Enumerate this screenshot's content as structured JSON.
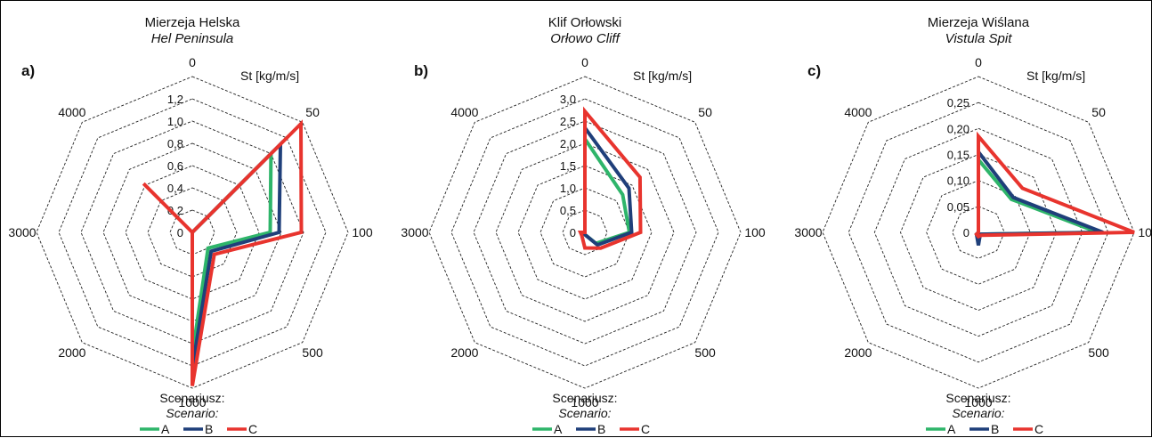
{
  "chart_data": [
    {
      "type": "radar",
      "panel": "a)",
      "title": "Mierzeja Helska",
      "subtitle": "Hel Peninsula",
      "unit": "St [kg/m/s]",
      "categories": [
        "0",
        "50",
        "100",
        "500",
        "1000",
        "2000",
        "3000",
        "4000"
      ],
      "ticks": [
        "0",
        "0,2",
        "0,4",
        "0,6",
        "0,8",
        "1,0",
        "1,2"
      ],
      "rmax": 1.4,
      "series": [
        {
          "name": "A",
          "color": "#2eb56a",
          "values": [
            0.0,
            1.0,
            0.7,
            0.2,
            1.1,
            0.0,
            0.0,
            0.0
          ]
        },
        {
          "name": "B",
          "color": "#1f3f7a",
          "values": [
            0.0,
            1.12,
            0.78,
            0.24,
            1.22,
            0.0,
            0.0,
            0.0
          ]
        },
        {
          "name": "C",
          "color": "#e8342e",
          "values": [
            0.0,
            1.38,
            0.98,
            0.28,
            1.38,
            0.0,
            0.0,
            0.62
          ]
        }
      ],
      "legend": {
        "title": "Scenariusz:",
        "subtitle": "Scenario:"
      }
    },
    {
      "type": "radar",
      "panel": "b)",
      "title": "Klif Orłowski",
      "subtitle": "Orłowo Cliff",
      "unit": "St [kg/m/s]",
      "categories": [
        "0",
        "50",
        "100",
        "500",
        "1000",
        "2000",
        "3000",
        "4000"
      ],
      "ticks": [
        "0",
        "0,5",
        "1,0",
        "1,5",
        "2,0",
        "2,5",
        "3,0"
      ],
      "rmax": 3.5,
      "series": [
        {
          "name": "A",
          "color": "#2eb56a",
          "values": [
            2.1,
            1.2,
            1.0,
            0.35,
            0.05,
            0.0,
            0.0,
            0.0
          ]
        },
        {
          "name": "B",
          "color": "#1f3f7a",
          "values": [
            2.35,
            1.4,
            1.05,
            0.4,
            0.05,
            0.0,
            0.0,
            0.0
          ]
        },
        {
          "name": "C",
          "color": "#e8342e",
          "values": [
            2.72,
            1.75,
            1.25,
            0.5,
            0.35,
            0.1,
            0.1,
            0.0
          ]
        }
      ],
      "legend": {
        "title": "Scenariusz:",
        "subtitle": "Scenario:"
      }
    },
    {
      "type": "radar",
      "panel": "c)",
      "title": "Mierzeja Wiślana",
      "subtitle": "Vistula Spit",
      "unit": "St [kg/m/s]",
      "categories": [
        "0",
        "50",
        "100",
        "500",
        "1000",
        "2000",
        "3000",
        "4000"
      ],
      "ticks": [
        "0",
        "0,05",
        "0,10",
        "0,15",
        "0,20",
        "0,25"
      ],
      "rmax": 0.3,
      "series": [
        {
          "name": "A",
          "color": "#2eb56a",
          "values": [
            0.14,
            0.09,
            0.23,
            0.005,
            0.02,
            0.005,
            0.0,
            0.0
          ]
        },
        {
          "name": "B",
          "color": "#1f3f7a",
          "values": [
            0.155,
            0.095,
            0.24,
            0.005,
            0.025,
            0.005,
            0.0,
            0.0
          ]
        },
        {
          "name": "C",
          "color": "#e8342e",
          "values": [
            0.185,
            0.12,
            0.3,
            0.008,
            0.008,
            0.005,
            0.0,
            0.0
          ]
        }
      ],
      "legend": {
        "title": "Scenariusz:",
        "subtitle": "Scenario:"
      }
    }
  ]
}
